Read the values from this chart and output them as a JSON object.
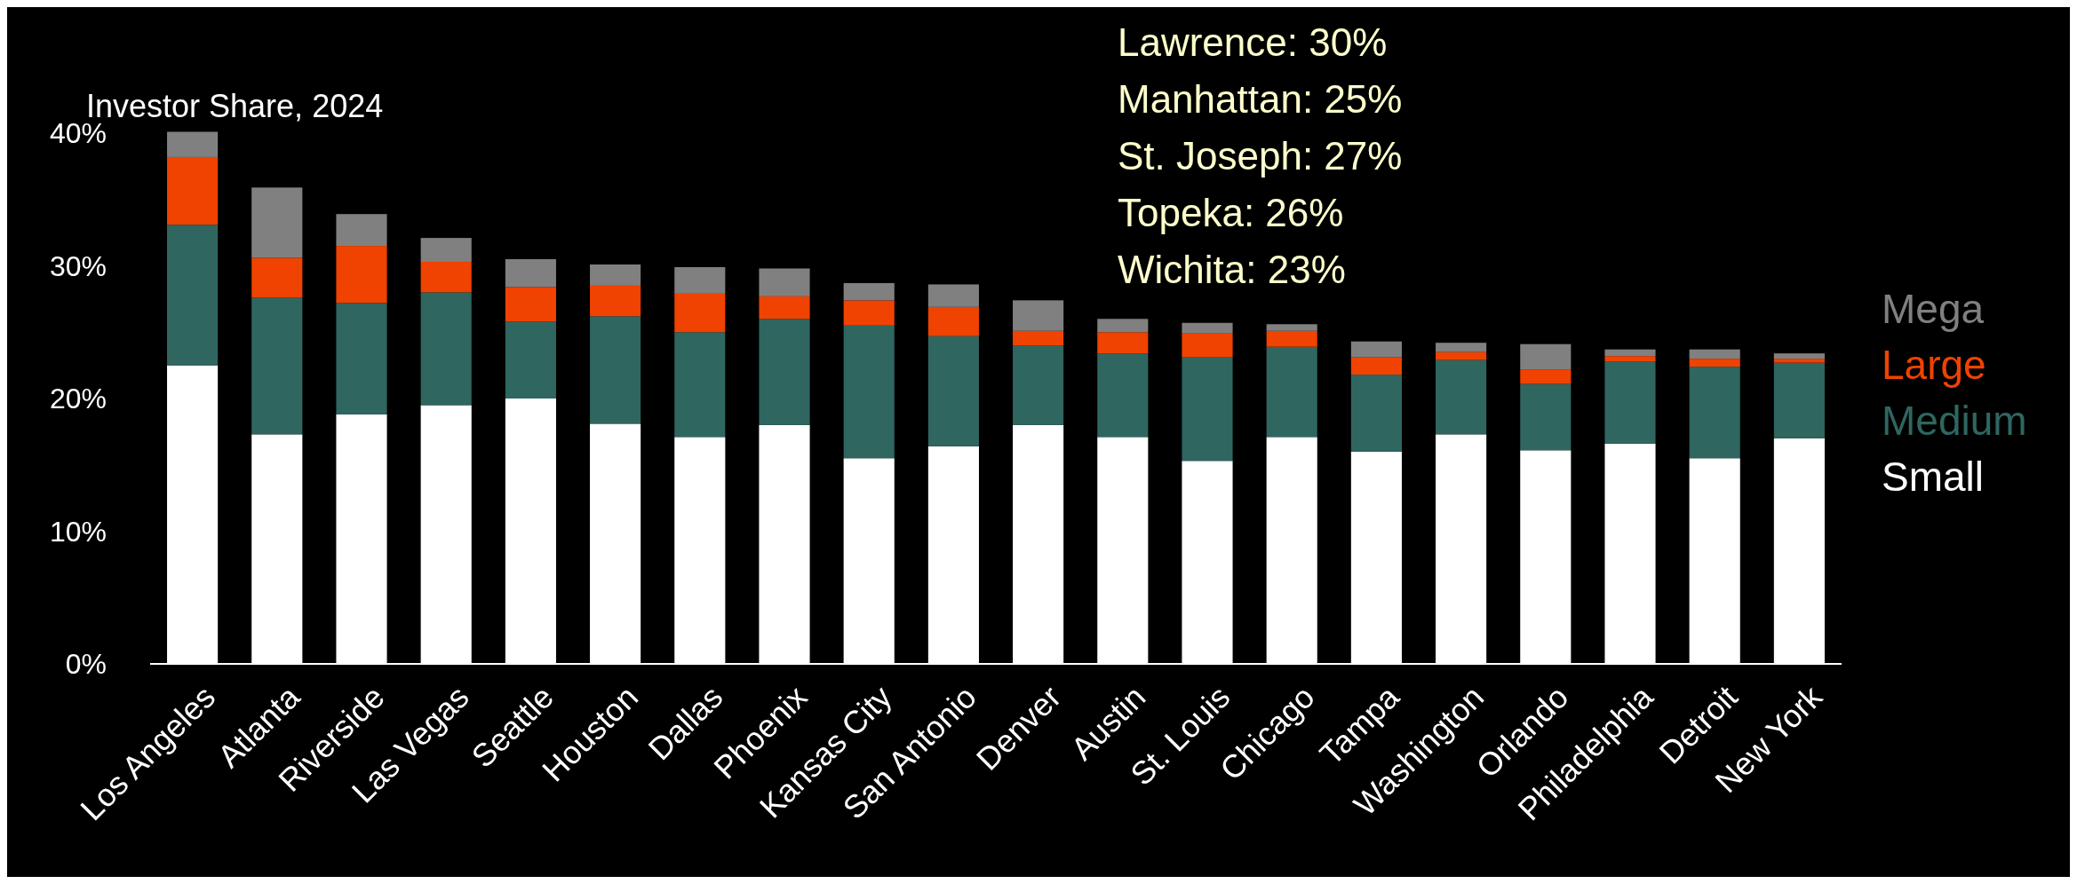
{
  "chart_data": {
    "type": "bar",
    "stacked": true,
    "title": "Investor Share, 2024",
    "categories": [
      "Los Angeles",
      "Atlanta",
      "Riverside",
      "Las Vegas",
      "Seattle",
      "Houston",
      "Dallas",
      "Phoenix",
      "Kansas City",
      "San Antonio",
      "Denver",
      "Austin",
      "St. Louis",
      "Chicago",
      "Tampa",
      "Washington",
      "Orlando",
      "Philadelphia",
      "Detroit",
      "New York"
    ],
    "series": [
      {
        "name": "Small",
        "color": "#ffffff",
        "values": [
          22.5,
          17.3,
          18.8,
          19.5,
          20.0,
          18.1,
          17.1,
          18.0,
          15.5,
          16.4,
          18.0,
          17.1,
          15.3,
          17.1,
          16.0,
          17.3,
          16.1,
          16.6,
          15.5,
          17.0
        ]
      },
      {
        "name": "Medium",
        "color": "#2f6660",
        "values": [
          10.6,
          10.3,
          8.4,
          8.5,
          5.8,
          8.1,
          7.9,
          8.0,
          10.0,
          8.3,
          6.0,
          6.3,
          7.8,
          6.8,
          5.8,
          5.6,
          5.0,
          6.2,
          6.9,
          5.7
        ]
      },
      {
        "name": "Large",
        "color": "#f04200",
        "values": [
          5.1,
          3.0,
          4.3,
          2.3,
          2.6,
          2.3,
          2.9,
          1.7,
          1.9,
          2.2,
          1.1,
          1.6,
          1.8,
          1.2,
          1.3,
          0.6,
          1.1,
          0.4,
          0.6,
          0.3
        ]
      },
      {
        "name": "Mega",
        "color": "#808080",
        "values": [
          1.9,
          5.3,
          2.4,
          1.8,
          2.1,
          1.6,
          2.0,
          2.1,
          1.3,
          1.7,
          2.3,
          1.0,
          0.8,
          0.5,
          1.2,
          0.7,
          1.9,
          0.5,
          0.7,
          0.4
        ]
      }
    ],
    "ylim": [
      0,
      40
    ],
    "yticks": [
      {
        "value": 0,
        "label": "0%"
      },
      {
        "value": 10,
        "label": "10%"
      },
      {
        "value": 20,
        "label": "20%"
      },
      {
        "value": 30,
        "label": "30%"
      },
      {
        "value": 40,
        "label": "40%"
      }
    ],
    "legend": "right",
    "grid": false,
    "annotations": [
      "Lawrence: 30%",
      "Manhattan: 25%",
      "St. Joseph: 27%",
      "Topeka: 26%",
      "Wichita: 23%"
    ]
  }
}
